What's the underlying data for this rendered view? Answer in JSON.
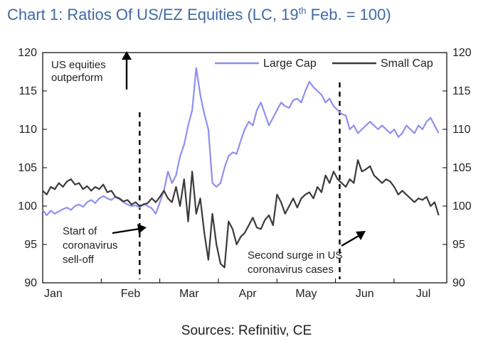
{
  "title": {
    "pre": "Chart 1: Ratios Of US/EZ Equities (LC, 19",
    "sup": "th",
    "post": " Feb. = 100)"
  },
  "source": "Sources: Refinitiv, CE",
  "chart_data": {
    "type": "line",
    "ylim": [
      90,
      120
    ],
    "yticks": [
      90,
      95,
      100,
      105,
      110,
      115,
      120
    ],
    "xticks": [
      "Jan",
      "Feb",
      "Mar",
      "Apr",
      "May",
      "Jun",
      "Jul"
    ],
    "xlim_days": [
      0,
      200
    ],
    "legend_position": "top-right",
    "colors": {
      "large": "#8e8ff0",
      "small": "#3b3b3b"
    },
    "series": [
      {
        "name": "Large Cap",
        "days": [
          0,
          2,
          4,
          6,
          8,
          10,
          12,
          14,
          16,
          18,
          20,
          22,
          24,
          26,
          28,
          30,
          32,
          34,
          36,
          38,
          40,
          42,
          44,
          46,
          48,
          50,
          52,
          54,
          56,
          58,
          60,
          62,
          64,
          66,
          68,
          70,
          72,
          74,
          76,
          78,
          80,
          82,
          84,
          86,
          88,
          90,
          92,
          94,
          96,
          98,
          100,
          102,
          104,
          106,
          108,
          110,
          112,
          114,
          116,
          118,
          120,
          122,
          124,
          126,
          128,
          130,
          132,
          134,
          136,
          138,
          140,
          142,
          144,
          146,
          148,
          150,
          152,
          154,
          156,
          158,
          160,
          162,
          164,
          166,
          168,
          170,
          172,
          174,
          176,
          178,
          180,
          182,
          184,
          186,
          188,
          190,
          192,
          194,
          196
        ],
        "values": [
          99.5,
          98.8,
          99.4,
          99.0,
          99.3,
          99.6,
          99.8,
          99.5,
          100.0,
          100.2,
          99.9,
          100.5,
          100.8,
          100.4,
          101.0,
          101.3,
          101.0,
          100.8,
          101.2,
          100.9,
          100.5,
          100.2,
          100.0,
          100.1,
          99.8,
          100.3,
          100.0,
          99.7,
          99.0,
          100.5,
          102.0,
          104.5,
          103.0,
          104.0,
          106.5,
          108.0,
          110.5,
          112.5,
          118.0,
          114.5,
          112.0,
          110.0,
          103.0,
          102.5,
          103.0,
          105.0,
          106.5,
          107.0,
          106.8,
          108.5,
          110.0,
          111.0,
          110.5,
          112.5,
          113.5,
          112.0,
          110.5,
          111.5,
          112.5,
          113.5,
          113.0,
          112.8,
          113.8,
          114.0,
          113.5,
          115.0,
          116.2,
          115.5,
          115.0,
          114.5,
          113.5,
          114.0,
          113.0,
          112.5,
          112.0,
          111.8,
          110.0,
          110.5,
          109.5,
          110.0,
          110.5,
          111.0,
          110.5,
          110.0,
          110.5,
          110.0,
          109.5,
          110.0,
          109.0,
          109.5,
          110.5,
          110.0,
          109.5,
          110.5,
          110.0,
          111.0,
          111.5,
          110.5,
          109.5
        ]
      },
      {
        "name": "Small Cap",
        "days": [
          0,
          2,
          4,
          6,
          8,
          10,
          12,
          14,
          16,
          18,
          20,
          22,
          24,
          26,
          28,
          30,
          32,
          34,
          36,
          38,
          40,
          42,
          44,
          46,
          48,
          50,
          52,
          54,
          56,
          58,
          60,
          62,
          64,
          66,
          68,
          70,
          72,
          74,
          76,
          78,
          80,
          82,
          84,
          86,
          88,
          90,
          92,
          94,
          96,
          98,
          100,
          102,
          104,
          106,
          108,
          110,
          112,
          114,
          116,
          118,
          120,
          122,
          124,
          126,
          128,
          130,
          132,
          134,
          136,
          138,
          140,
          142,
          144,
          146,
          148,
          150,
          152,
          154,
          156,
          158,
          160,
          162,
          164,
          166,
          168,
          170,
          172,
          174,
          176,
          178,
          180,
          182,
          184,
          186,
          188,
          190,
          192,
          194,
          196
        ],
        "values": [
          102.0,
          101.5,
          102.5,
          102.2,
          103.0,
          102.5,
          103.2,
          103.5,
          102.8,
          103.0,
          102.2,
          102.6,
          102.0,
          102.5,
          102.2,
          102.8,
          101.8,
          102.0,
          101.2,
          101.0,
          100.6,
          100.8,
          100.2,
          100.5,
          100.0,
          100.2,
          100.4,
          101.0,
          100.5,
          101.2,
          102.0,
          101.0,
          100.5,
          102.5,
          100.0,
          103.5,
          98.0,
          104.5,
          99.0,
          101.0,
          96.5,
          93.0,
          99.0,
          95.0,
          92.5,
          92.0,
          98.0,
          97.0,
          95.0,
          96.0,
          96.5,
          97.5,
          98.5,
          97.2,
          97.0,
          98.2,
          98.8,
          97.5,
          101.5,
          100.5,
          99.0,
          100.0,
          101.0,
          99.8,
          101.0,
          101.5,
          101.8,
          101.0,
          102.5,
          101.8,
          104.0,
          103.0,
          104.5,
          103.5,
          103.0,
          102.5,
          103.5,
          103.0,
          106.0,
          104.5,
          104.8,
          105.2,
          104.0,
          103.5,
          103.0,
          103.5,
          103.2,
          102.5,
          101.5,
          102.0,
          101.5,
          101.0,
          100.5,
          101.0,
          100.8,
          101.2,
          100.0,
          100.5,
          98.8
        ]
      }
    ],
    "annotations": {
      "us_outperform": [
        "US equities",
        "outperform"
      ],
      "selloff": [
        "Start of",
        "coronavirus",
        "sell-off"
      ],
      "second_surge": [
        "Second surge in US",
        "coronavirus cases"
      ]
    },
    "event_lines_days": [
      48,
      147
    ]
  }
}
